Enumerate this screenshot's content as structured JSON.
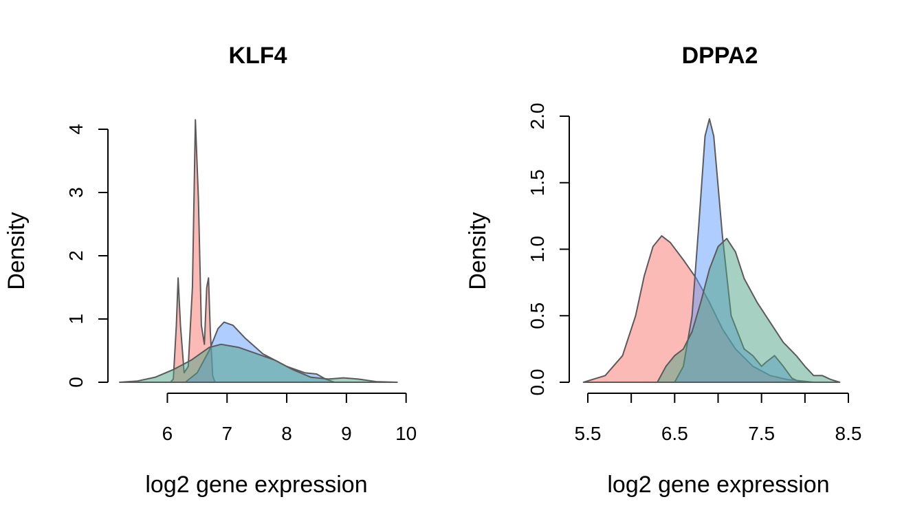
{
  "chart_data": [
    {
      "type": "area",
      "title": "KLF4",
      "xlabel": "log2 gene expression",
      "ylabel": "Density",
      "xlim": [
        5.2,
        9.9
      ],
      "ylim": [
        0,
        4.2
      ],
      "xticks": [
        6,
        7,
        8,
        9,
        10
      ],
      "xtick_labels": [
        "6",
        "7",
        "8",
        "9",
        "10"
      ],
      "yticks": [
        0,
        1,
        2,
        3,
        4
      ],
      "ytick_labels": [
        "0",
        "1",
        "2",
        "3",
        "4"
      ],
      "grid": false,
      "series": [
        {
          "color": "#F8766D",
          "values": [
            [
              6.05,
              0
            ],
            [
              6.1,
              0.05
            ],
            [
              6.15,
              0.9
            ],
            [
              6.18,
              1.65
            ],
            [
              6.22,
              0.9
            ],
            [
              6.28,
              0.15
            ],
            [
              6.35,
              0.25
            ],
            [
              6.42,
              1.5
            ],
            [
              6.47,
              4.15
            ],
            [
              6.52,
              2.9
            ],
            [
              6.57,
              0.9
            ],
            [
              6.62,
              0.6
            ],
            [
              6.66,
              1.5
            ],
            [
              6.69,
              1.65
            ],
            [
              6.72,
              0.8
            ],
            [
              6.76,
              0.1
            ],
            [
              6.8,
              0
            ]
          ]
        },
        {
          "color": "#619CFF",
          "values": [
            [
              6.3,
              0
            ],
            [
              6.5,
              0.15
            ],
            [
              6.7,
              0.5
            ],
            [
              6.85,
              0.85
            ],
            [
              6.95,
              0.95
            ],
            [
              7.1,
              0.9
            ],
            [
              7.3,
              0.7
            ],
            [
              7.6,
              0.45
            ],
            [
              8.0,
              0.25
            ],
            [
              8.3,
              0.15
            ],
            [
              8.5,
              0.13
            ],
            [
              8.65,
              0.05
            ],
            [
              8.8,
              0
            ]
          ]
        },
        {
          "color": "#4DA284",
          "values": [
            [
              5.2,
              0
            ],
            [
              5.5,
              0.02
            ],
            [
              5.8,
              0.08
            ],
            [
              6.1,
              0.2
            ],
            [
              6.4,
              0.35
            ],
            [
              6.7,
              0.55
            ],
            [
              6.9,
              0.6
            ],
            [
              7.2,
              0.55
            ],
            [
              7.5,
              0.45
            ],
            [
              7.8,
              0.35
            ],
            [
              8.1,
              0.2
            ],
            [
              8.4,
              0.08
            ],
            [
              8.7,
              0.05
            ],
            [
              8.95,
              0.07
            ],
            [
              9.2,
              0.05
            ],
            [
              9.5,
              0.01
            ],
            [
              9.85,
              0
            ]
          ]
        }
      ]
    },
    {
      "type": "area",
      "title": "DPPA2",
      "xlabel": "log2 gene expression",
      "ylabel": "Density",
      "xlim": [
        5.4,
        8.6
      ],
      "ylim": [
        0,
        2.0
      ],
      "xticks": [
        5.5,
        6.0,
        6.5,
        7.0,
        7.5,
        8.0,
        8.5
      ],
      "xtick_labels": [
        "5.5",
        "",
        "6.5",
        "",
        "7.5",
        "",
        "8.5"
      ],
      "yticks": [
        0,
        0.5,
        1.0,
        1.5,
        2.0
      ],
      "ytick_labels": [
        "0.0",
        "0.5",
        "1.0",
        "1.5",
        "2.0"
      ],
      "grid": false,
      "series": [
        {
          "color": "#F8766D",
          "values": [
            [
              5.45,
              0
            ],
            [
              5.7,
              0.05
            ],
            [
              5.9,
              0.2
            ],
            [
              6.05,
              0.5
            ],
            [
              6.15,
              0.8
            ],
            [
              6.25,
              1.02
            ],
            [
              6.35,
              1.1
            ],
            [
              6.45,
              1.05
            ],
            [
              6.6,
              0.92
            ],
            [
              6.75,
              0.78
            ],
            [
              6.9,
              0.6
            ],
            [
              7.05,
              0.4
            ],
            [
              7.2,
              0.25
            ],
            [
              7.4,
              0.12
            ],
            [
              7.6,
              0.05
            ],
            [
              7.8,
              0.02
            ],
            [
              8.1,
              0
            ]
          ]
        },
        {
          "color": "#619CFF",
          "values": [
            [
              6.5,
              0
            ],
            [
              6.6,
              0.12
            ],
            [
              6.7,
              0.5
            ],
            [
              6.78,
              1.2
            ],
            [
              6.85,
              1.85
            ],
            [
              6.9,
              1.98
            ],
            [
              6.95,
              1.85
            ],
            [
              7.05,
              1.1
            ],
            [
              7.15,
              0.5
            ],
            [
              7.3,
              0.25
            ],
            [
              7.4,
              0.2
            ],
            [
              7.5,
              0.12
            ],
            [
              7.55,
              0.15
            ],
            [
              7.65,
              0.2
            ],
            [
              7.75,
              0.12
            ],
            [
              7.85,
              0.03
            ],
            [
              7.95,
              0
            ]
          ]
        },
        {
          "color": "#4DA284",
          "values": [
            [
              6.3,
              0
            ],
            [
              6.4,
              0.12
            ],
            [
              6.5,
              0.2
            ],
            [
              6.6,
              0.25
            ],
            [
              6.7,
              0.38
            ],
            [
              6.8,
              0.6
            ],
            [
              6.9,
              0.85
            ],
            [
              7.0,
              1.02
            ],
            [
              7.1,
              1.08
            ],
            [
              7.2,
              0.98
            ],
            [
              7.3,
              0.78
            ],
            [
              7.45,
              0.6
            ],
            [
              7.6,
              0.45
            ],
            [
              7.75,
              0.3
            ],
            [
              7.9,
              0.2
            ],
            [
              8.0,
              0.12
            ],
            [
              8.1,
              0.05
            ],
            [
              8.2,
              0.05
            ],
            [
              8.3,
              0.02
            ],
            [
              8.4,
              0
            ]
          ]
        }
      ]
    }
  ]
}
